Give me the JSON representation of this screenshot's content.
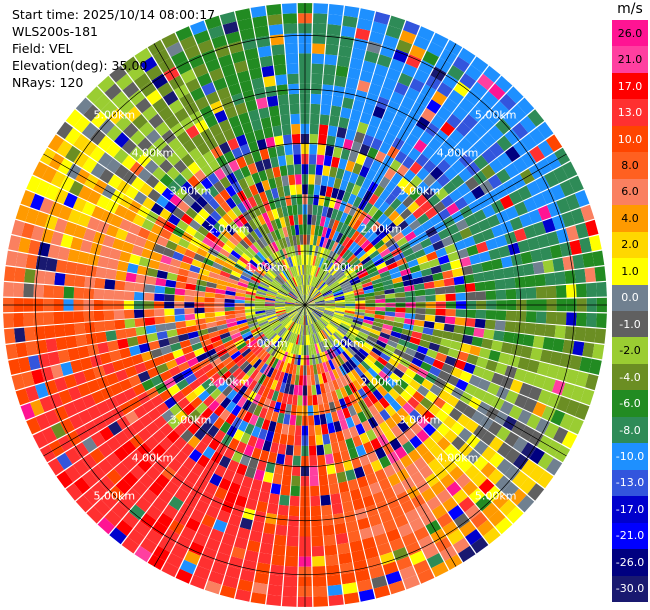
{
  "info": {
    "start_time": "Start time: 2025/10/14 08:00:17",
    "instrument": "WLS200s-181",
    "field": "Field: VEL",
    "elevation": "Elevation(deg): 35.00",
    "nrays": "NRays: 120"
  },
  "colorbar": {
    "unit": "m/s",
    "levels": [
      "26.0",
      "21.0",
      "17.0",
      "13.0",
      "10.0",
      "8.0",
      "6.0",
      "4.0",
      "2.0",
      "1.0",
      "0.0",
      "-1.0",
      "-2.0",
      "-4.0",
      "-6.0",
      "-8.0",
      "-10.0",
      "-13.0",
      "-17.0",
      "-21.0",
      "-26.0",
      "-30.0"
    ],
    "colors": [
      "#ff1493",
      "#ff3fa0",
      "#ff0000",
      "#ff3030",
      "#ff4500",
      "#ff6020",
      "#fa8060",
      "#ff9a00",
      "#ffd700",
      "#ffff00",
      "#708090",
      "#606060",
      "#9acd32",
      "#6b8e23",
      "#228b22",
      "#2e8b57",
      "#1e90ff",
      "#3355dd",
      "#0000cd",
      "#0000ff",
      "#000080",
      "#191970"
    ]
  },
  "chart_data": {
    "type": "ppi",
    "field": "VEL",
    "units": "m/s",
    "n_rays": 120,
    "elevation_deg": 35.0,
    "range_rings_km": [
      1.0,
      2.0,
      3.0,
      4.0,
      5.0
    ],
    "ring_labels": [
      "1.00km",
      "2.00km",
      "3.00km",
      "4.00km",
      "5.00km"
    ],
    "max_range_km": 5.6,
    "spoke_interval_deg": 30,
    "colorbar_range": [
      -30.0,
      30.0
    ]
  }
}
